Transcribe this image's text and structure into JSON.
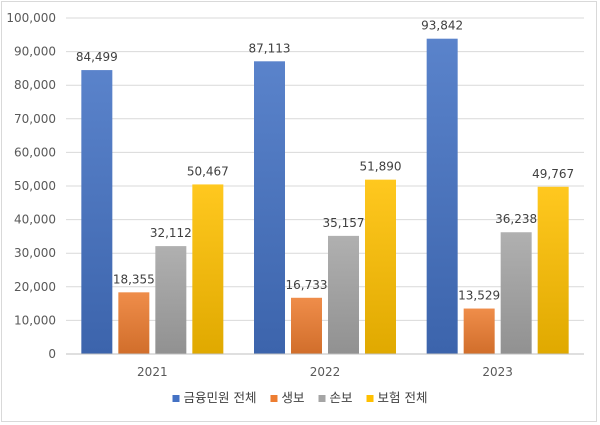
{
  "chart_data": {
    "type": "bar",
    "categories": [
      "2021",
      "2022",
      "2023"
    ],
    "series": [
      {
        "name": "금융민원 전체",
        "values": [
          84499,
          87113,
          93842
        ],
        "color": "#4472C4",
        "labels": [
          "84,499",
          "87,113",
          "93,842"
        ]
      },
      {
        "name": "생보",
        "values": [
          18355,
          16733,
          13529
        ],
        "color": "#ED7D31",
        "labels": [
          "18,355",
          "16,733",
          "13,529"
        ]
      },
      {
        "name": "손보",
        "values": [
          32112,
          35157,
          36238
        ],
        "color": "#A5A5A5",
        "labels": [
          "32,112",
          "35,157",
          "36,238"
        ]
      },
      {
        "name": "보험 전체",
        "values": [
          50467,
          51890,
          49767
        ],
        "color": "#FFC000",
        "labels": [
          "50,467",
          "51,890",
          "49,767"
        ]
      }
    ],
    "ylim": [
      0,
      100000
    ],
    "ytick_labels": [
      "0",
      "10,000",
      "20,000",
      "30,000",
      "40,000",
      "50,000",
      "60,000",
      "70,000",
      "80,000",
      "90,000",
      "100,000"
    ],
    "grid": true,
    "legend": "bottom"
  }
}
